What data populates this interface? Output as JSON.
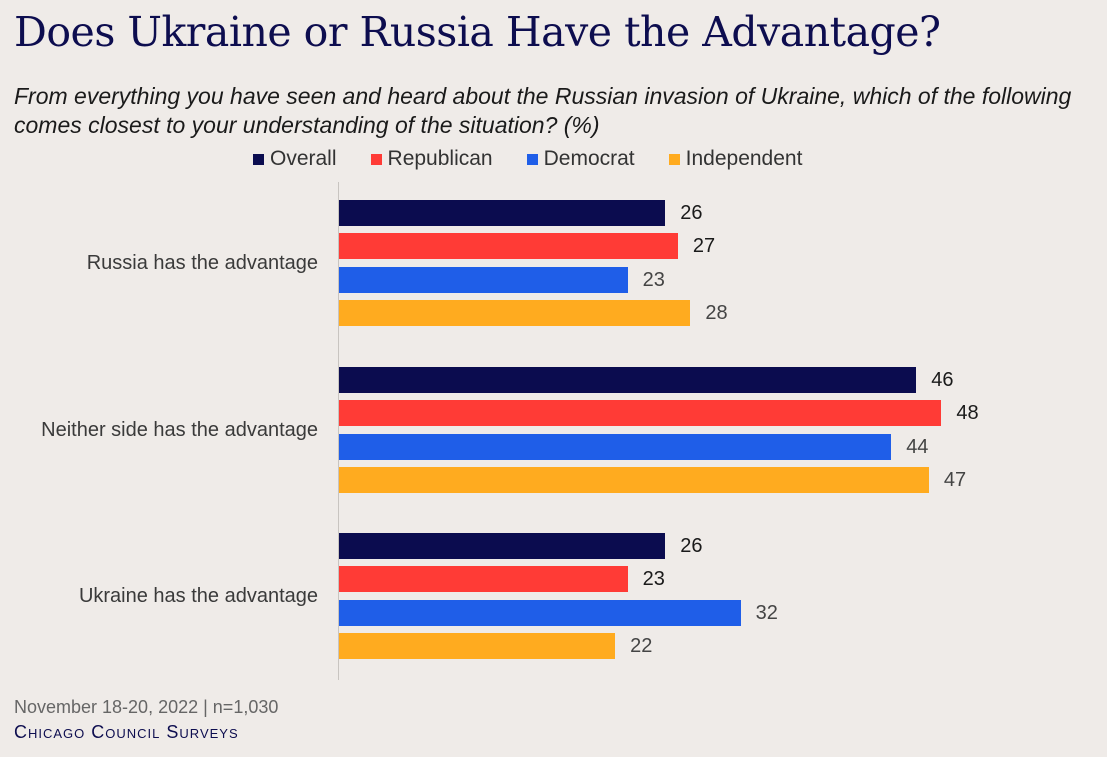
{
  "title": "Does Ukraine or Russia Have the Advantage?",
  "subtitle": "From everything you have seen and heard about the Russian invasion of Ukraine, which of the following comes closest to your understanding of the situation? (%)",
  "footer": {
    "note": "November 18-20, 2022 | n=1,030",
    "brand": "Chicago Council Surveys"
  },
  "chart_data": {
    "type": "bar",
    "orientation": "horizontal",
    "categories": [
      "Russia has the advantage",
      "Neither side has the advantage",
      "Ukraine has the advantage"
    ],
    "series": [
      {
        "name": "Overall",
        "color": "#0b0c4f",
        "values": [
          26,
          46,
          26
        ]
      },
      {
        "name": "Republican",
        "color": "#ff3b36",
        "values": [
          27,
          48,
          23
        ]
      },
      {
        "name": "Democrat",
        "color": "#1f5ee8",
        "values": [
          23,
          44,
          32
        ]
      },
      {
        "name": "Independent",
        "color": "#ffab1f",
        "values": [
          28,
          47,
          22
        ]
      }
    ],
    "xlim": [
      0,
      50
    ],
    "legend_position": "top",
    "grid": false
  }
}
